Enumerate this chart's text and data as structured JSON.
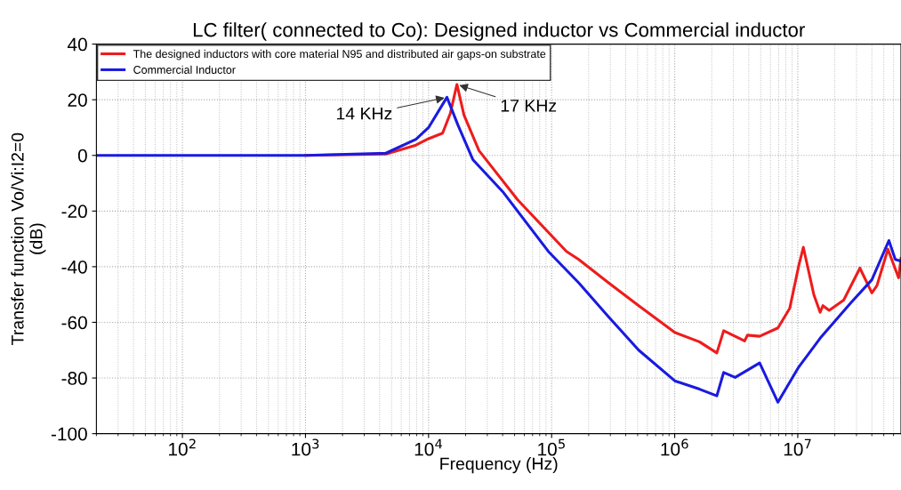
{
  "chart_data": {
    "type": "line",
    "title": "LC filter( connected to Co): Designed inductor vs Commercial inductor",
    "xlabel": "Frequency (Hz)",
    "ylabel": "Transfer function Vo/Vi:I2=0\n(dB)",
    "log": "x",
    "grid": true,
    "legend": "top left",
    "line_style": "solid",
    "marker": "none",
    "xlim": [
      20,
      69000000
    ],
    "ylim": [
      -100,
      40
    ],
    "xticks": [
      {
        "value": 100,
        "label": "10$^{2}$"
      },
      {
        "value": 1000,
        "label": "10$^{3}$"
      },
      {
        "value": 10000,
        "label": "10$^{4}$"
      },
      {
        "value": 100000,
        "label": "10$^{5}$"
      },
      {
        "value": 1000000,
        "label": "10$^{6}$"
      },
      {
        "value": 10000000,
        "label": "10$^{7}$"
      }
    ],
    "yticks": [
      -100,
      -80,
      -60,
      -40,
      -20,
      0,
      20,
      40
    ],
    "annotations": [
      {
        "text": "14 KHz",
        "x": 14100,
        "y": 20.9
      },
      {
        "text": "17 KHz",
        "x": 17000,
        "y": 25.5
      }
    ],
    "series": [
      {
        "name": "The designed inductors with core material N95 and distributed air gaps-on substrate",
        "color": "#ee1c1c",
        "x": [
          1000,
          4500,
          7900,
          10000,
          13000,
          15000,
          17000,
          19400,
          25700,
          53000,
          132000,
          166000,
          290000,
          510000,
          1000000,
          1590000,
          2200000,
          2500000,
          3700000,
          3900000,
          4900000,
          6900000,
          8600000,
          10200000,
          11100000,
          12100000,
          13500000,
          15200000,
          16000000,
          18000000,
          23600000,
          32000000,
          40000000,
          44000000,
          54000000,
          66000000,
          69000000
        ],
        "values": [
          0,
          0.5,
          3.7,
          6,
          8,
          15,
          25.5,
          14.5,
          1.7,
          -16,
          -34.5,
          -37.4,
          -45.8,
          -54,
          -63.6,
          -67,
          -71,
          -63,
          -66.7,
          -64.6,
          -65,
          -62,
          -55,
          -39.5,
          -33,
          -40.5,
          -50,
          -56.4,
          -54,
          -55.7,
          -52,
          -40.5,
          -49.4,
          -46.8,
          -33.7,
          -44,
          -37
        ]
      },
      {
        "name": "Commercial Inductor",
        "color": "#1a1ae0",
        "x": [
          20,
          100,
          1000,
          4500,
          7900,
          10000,
          14100,
          17300,
          22900,
          40000,
          94000,
          166000,
          290000,
          510000,
          1000000,
          1590000,
          2200000,
          2500000,
          3100000,
          4900000,
          6900000,
          10200000,
          15200000,
          27000000,
          40000000,
          55000000,
          62000000,
          69000000
        ],
        "values": [
          0,
          0,
          0,
          0.8,
          5.8,
          10,
          20.9,
          11,
          -1.5,
          -13,
          -34.5,
          -45.8,
          -58,
          -70,
          -81,
          -84,
          -86.4,
          -78,
          -79.8,
          -74.6,
          -88.7,
          -76,
          -65.7,
          -53,
          -44.7,
          -30.6,
          -37.4,
          -38
        ]
      }
    ]
  }
}
